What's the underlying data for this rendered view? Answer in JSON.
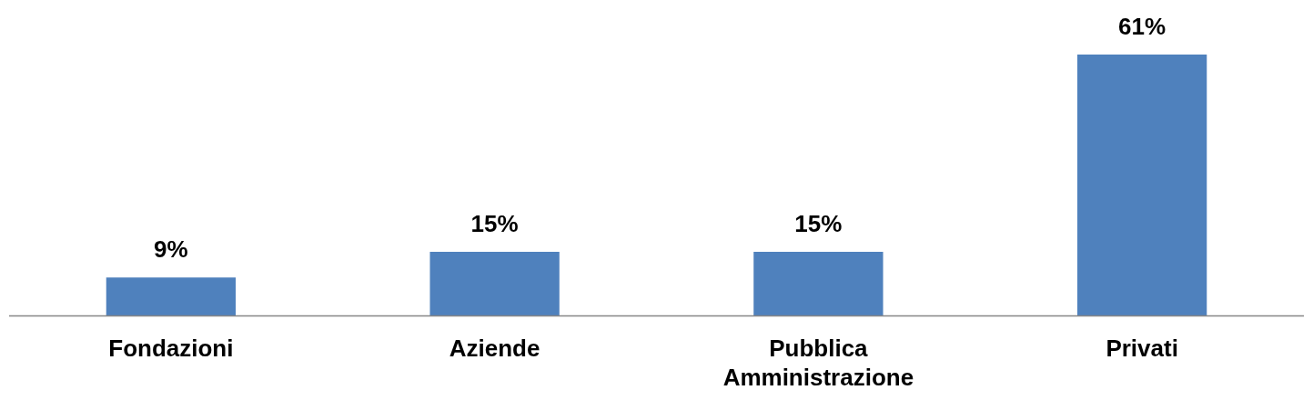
{
  "chart_data": {
    "type": "bar",
    "categories": [
      "Fondazioni",
      "Aziende",
      "Pubblica Amministrazione",
      "Privati"
    ],
    "values": [
      9,
      15,
      15,
      61
    ],
    "value_labels": [
      "9%",
      "15%",
      "15%",
      "61%"
    ],
    "color": "#4f81bd",
    "grid": false,
    "legend": false
  }
}
